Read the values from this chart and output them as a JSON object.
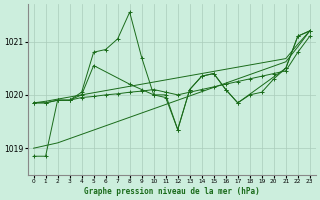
{
  "background_color": "#cceedd",
  "grid_color": "#aaccbb",
  "line_color": "#1a6b1a",
  "title": "Graphe pression niveau de la mer (hPa)",
  "xlim": [
    -0.5,
    23.5
  ],
  "ylim": [
    1018.5,
    1021.7
  ],
  "yticks": [
    1019,
    1020,
    1021
  ],
  "xticks": [
    0,
    1,
    2,
    3,
    4,
    5,
    6,
    7,
    8,
    9,
    10,
    11,
    12,
    13,
    14,
    15,
    16,
    17,
    18,
    19,
    20,
    21,
    22,
    23
  ],
  "series": [
    {
      "x": [
        0,
        1,
        2,
        3,
        4,
        5,
        6,
        7,
        8,
        9,
        10,
        11,
        12,
        13,
        14,
        15,
        16,
        17,
        18,
        19,
        20,
        21,
        22,
        23
      ],
      "y": [
        1018.85,
        1018.85,
        1019.9,
        1019.9,
        1020.05,
        1020.8,
        1020.85,
        1021.05,
        1021.55,
        1020.7,
        1020.0,
        1020.0,
        1019.35,
        1020.1,
        1020.35,
        1020.4,
        1020.1,
        1019.85,
        1020.0,
        1020.05,
        1020.3,
        1020.5,
        1021.1,
        1021.2
      ],
      "marker": true
    },
    {
      "x": [
        0,
        1,
        2,
        3,
        4,
        5,
        8,
        9,
        10,
        11,
        12,
        13,
        14,
        15,
        16,
        17,
        21,
        22,
        23
      ],
      "y": [
        1019.85,
        1019.85,
        1019.9,
        1019.9,
        1020.0,
        1020.55,
        1020.2,
        1020.1,
        1020.0,
        1019.95,
        1019.35,
        1020.1,
        1020.35,
        1020.4,
        1020.1,
        1019.85,
        1020.5,
        1021.1,
        1021.2
      ],
      "marker": true
    },
    {
      "x": [
        0,
        1,
        2,
        3,
        4,
        5,
        6,
        7,
        8,
        9,
        10,
        11,
        12,
        13,
        14,
        15,
        16,
        17,
        18,
        19,
        20,
        21,
        22,
        23
      ],
      "y": [
        1019.0,
        1019.05,
        1019.1,
        1019.18,
        1019.26,
        1019.34,
        1019.42,
        1019.5,
        1019.58,
        1019.66,
        1019.74,
        1019.82,
        1019.9,
        1019.98,
        1020.06,
        1020.14,
        1020.22,
        1020.3,
        1020.38,
        1020.46,
        1020.54,
        1020.62,
        1020.9,
        1021.2
      ],
      "marker": false
    },
    {
      "x": [
        0,
        1,
        2,
        3,
        4,
        5,
        6,
        7,
        8,
        9,
        10,
        11,
        12,
        13,
        14,
        15,
        16,
        17,
        18,
        19,
        20,
        21,
        22,
        23
      ],
      "y": [
        1019.85,
        1019.88,
        1019.92,
        1019.96,
        1020.0,
        1020.04,
        1020.08,
        1020.12,
        1020.16,
        1020.2,
        1020.24,
        1020.28,
        1020.32,
        1020.36,
        1020.4,
        1020.44,
        1020.48,
        1020.52,
        1020.56,
        1020.6,
        1020.64,
        1020.68,
        1020.95,
        1021.2
      ],
      "marker": false
    },
    {
      "x": [
        0,
        1,
        2,
        3,
        4,
        5,
        6,
        7,
        8,
        9,
        10,
        11,
        12,
        13,
        14,
        15,
        16,
        17,
        18,
        19,
        20,
        21,
        22,
        23
      ],
      "y": [
        1019.85,
        1019.85,
        1019.9,
        1019.9,
        1019.95,
        1019.97,
        1020.0,
        1020.02,
        1020.05,
        1020.07,
        1020.1,
        1020.05,
        1020.0,
        1020.05,
        1020.1,
        1020.15,
        1020.2,
        1020.25,
        1020.3,
        1020.35,
        1020.4,
        1020.45,
        1020.8,
        1021.1
      ],
      "marker": true
    }
  ]
}
